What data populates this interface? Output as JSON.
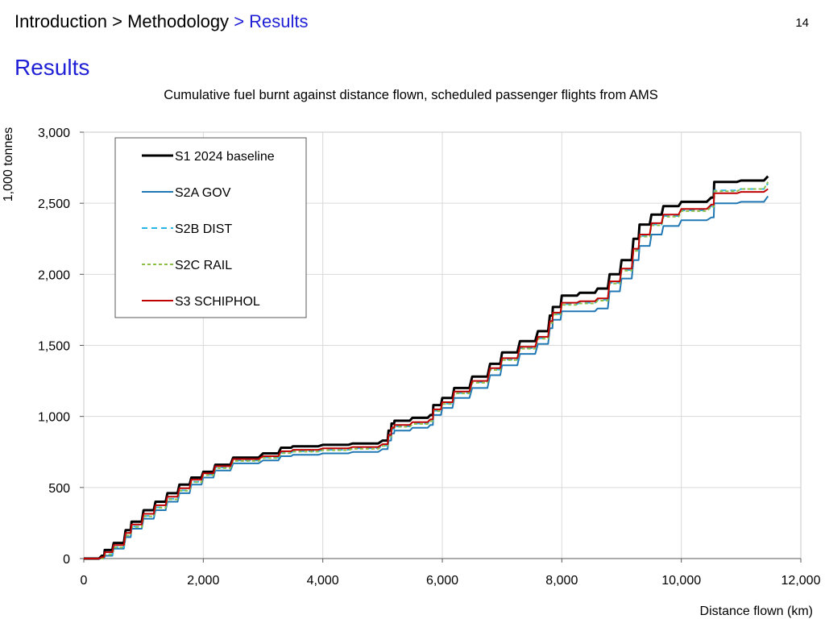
{
  "header": {
    "breadcrumb": [
      "Introduction",
      "Methodology",
      "Results"
    ],
    "separator": ">",
    "page_number": "14"
  },
  "page_title": "Results",
  "colors": {
    "accent": "#1f1fd6"
  },
  "chart_data": {
    "type": "line",
    "title": "Cumulative fuel burnt against distance flown, scheduled passenger flights from AMS",
    "xlabel": "Distance flown (km)",
    "ylabel": "1,000 tonnes",
    "xlim": [
      0,
      12000
    ],
    "ylim": [
      0,
      3000
    ],
    "x_ticks": [
      0,
      2000,
      4000,
      6000,
      8000,
      10000,
      12000
    ],
    "x_tick_labels": [
      "0",
      "2,000",
      "4,000",
      "6,000",
      "8,000",
      "10,000",
      "12,000"
    ],
    "y_ticks": [
      0,
      500,
      1000,
      1500,
      2000,
      2500,
      3000
    ],
    "y_tick_labels": [
      "0",
      "500",
      "1,000",
      "1,500",
      "2,000",
      "2,500",
      "3,000"
    ],
    "grid": true,
    "legend_position": "top-left",
    "x": [
      0,
      300,
      350,
      500,
      700,
      800,
      1000,
      1200,
      1400,
      1600,
      1800,
      2000,
      2200,
      2500,
      3000,
      3300,
      3500,
      4000,
      4500,
      5000,
      5100,
      5150,
      5200,
      5500,
      5800,
      5850,
      6000,
      6200,
      6500,
      6800,
      7000,
      7300,
      7600,
      7800,
      7850,
      8000,
      8300,
      8600,
      8800,
      9000,
      9200,
      9300,
      9500,
      9700,
      10000,
      10500,
      10550,
      11000,
      11450
    ],
    "series": [
      {
        "name": "S1 2024 baseline",
        "color": "#000000",
        "dash": "solid",
        "values": [
          0,
          20,
          60,
          110,
          200,
          260,
          340,
          400,
          460,
          520,
          570,
          610,
          660,
          710,
          740,
          780,
          790,
          800,
          810,
          830,
          900,
          950,
          970,
          990,
          1010,
          1080,
          1130,
          1200,
          1280,
          1370,
          1450,
          1530,
          1600,
          1710,
          1770,
          1850,
          1870,
          1900,
          2000,
          2100,
          2250,
          2350,
          2420,
          2480,
          2510,
          2540,
          2650,
          2660,
          2690
        ]
      },
      {
        "name": "S2A GOV",
        "color": "#1f77b4",
        "dash": "solid",
        "values": [
          0,
          0,
          20,
          70,
          150,
          210,
          280,
          340,
          400,
          460,
          520,
          570,
          620,
          670,
          690,
          720,
          730,
          740,
          750,
          770,
          830,
          880,
          900,
          920,
          940,
          1010,
          1060,
          1130,
          1200,
          1290,
          1360,
          1440,
          1510,
          1620,
          1680,
          1740,
          1740,
          1760,
          1880,
          1970,
          2100,
          2200,
          2280,
          2340,
          2380,
          2400,
          2500,
          2510,
          2550
        ]
      },
      {
        "name": "S2B DIST",
        "color": "#29b6e8",
        "dash": "dash",
        "values": [
          0,
          0,
          30,
          80,
          165,
          225,
          300,
          360,
          420,
          480,
          540,
          590,
          640,
          690,
          710,
          745,
          755,
          765,
          775,
          795,
          860,
          910,
          930,
          950,
          970,
          1040,
          1090,
          1165,
          1240,
          1330,
          1400,
          1480,
          1550,
          1660,
          1720,
          1790,
          1800,
          1820,
          1940,
          2030,
          2170,
          2270,
          2350,
          2410,
          2450,
          2480,
          2590,
          2600,
          2640
        ]
      },
      {
        "name": "S2C RAIL",
        "color": "#8dc04a",
        "dash": "dot",
        "values": [
          0,
          0,
          28,
          78,
          162,
          222,
          297,
          357,
          417,
          477,
          537,
          587,
          637,
          687,
          707,
          742,
          752,
          762,
          772,
          792,
          857,
          907,
          927,
          947,
          967,
          1037,
          1087,
          1162,
          1237,
          1327,
          1397,
          1477,
          1547,
          1657,
          1717,
          1785,
          1795,
          1815,
          1935,
          2025,
          2165,
          2265,
          2345,
          2405,
          2445,
          2475,
          2585,
          2600,
          2650
        ]
      },
      {
        "name": "S3 SCHIPHOL",
        "color": "#c00000",
        "dash": "solid",
        "values": [
          0,
          10,
          45,
          95,
          180,
          240,
          315,
          375,
          435,
          495,
          555,
          600,
          650,
          700,
          720,
          755,
          765,
          775,
          785,
          805,
          870,
          920,
          940,
          960,
          980,
          1050,
          1100,
          1175,
          1250,
          1340,
          1410,
          1490,
          1560,
          1670,
          1730,
          1800,
          1810,
          1830,
          1950,
          2040,
          2180,
          2280,
          2360,
          2420,
          2460,
          2490,
          2570,
          2580,
          2600
        ]
      }
    ]
  }
}
